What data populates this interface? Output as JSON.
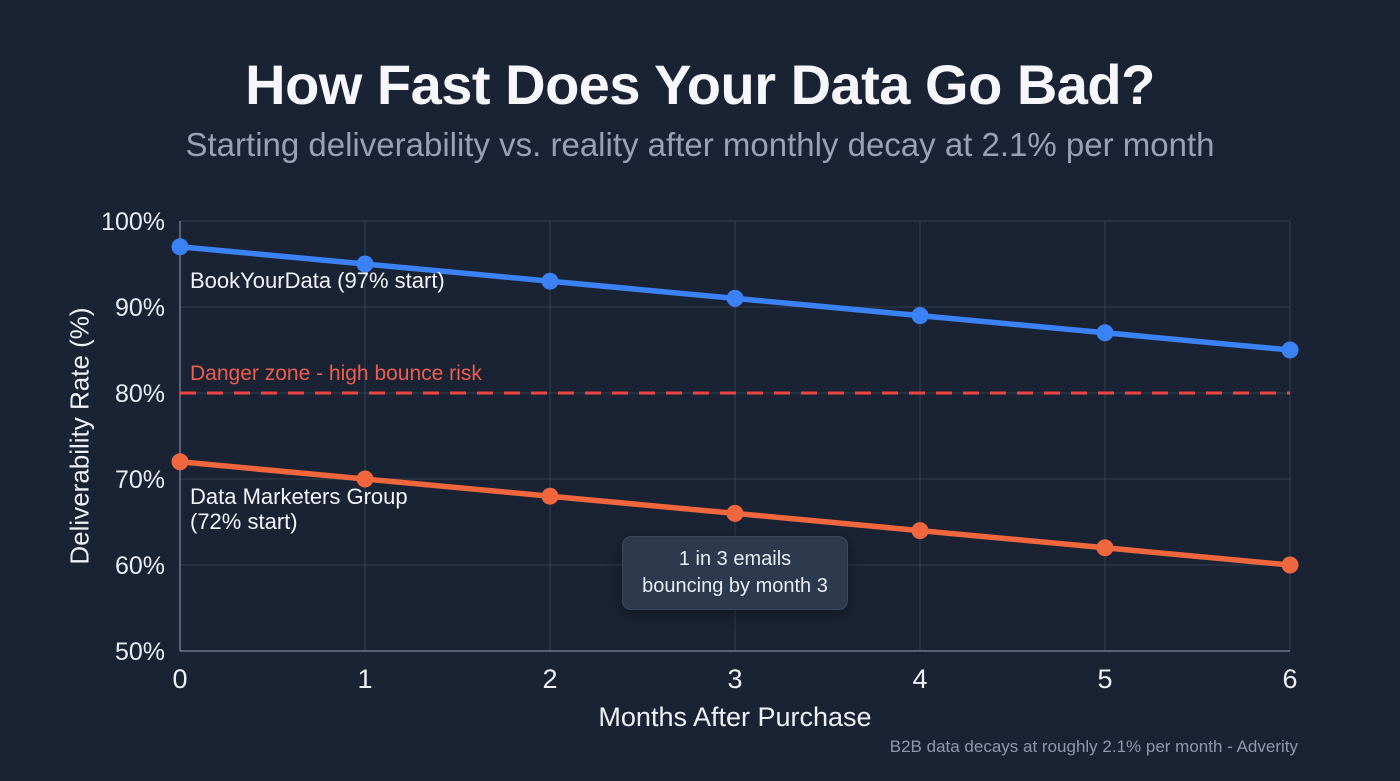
{
  "header": {
    "title": "How Fast Does Your Data Go Bad?",
    "subtitle": "Starting deliverability vs. reality after monthly decay at 2.1% per month"
  },
  "chart_data": {
    "type": "line",
    "x": [
      0,
      1,
      2,
      3,
      4,
      5,
      6
    ],
    "x_tick_labels": [
      "0",
      "1",
      "2",
      "3",
      "4",
      "5",
      "6"
    ],
    "xlabel": "Months After Purchase",
    "ylabel": "Deliverability Rate (%)",
    "ylim": [
      50,
      100
    ],
    "y_ticks": [
      100,
      90,
      80,
      70,
      60,
      50
    ],
    "y_tick_labels": [
      "100%",
      "90%",
      "80%",
      "70%",
      "60%",
      "50%"
    ],
    "grid": true,
    "legend_position": "inline-labels",
    "series": [
      {
        "name": "BookYourData",
        "label": "BookYourData (97% start)",
        "color": "#3b82f6",
        "values": [
          97,
          95,
          93,
          91,
          89,
          87,
          85
        ]
      },
      {
        "name": "Data Marketers Group",
        "label": "Data Marketers Group (72% start)",
        "color": "#f0663d",
        "values": [
          72,
          70,
          68,
          66,
          64,
          62,
          60
        ]
      }
    ],
    "danger_line": {
      "value": 80,
      "label": "Danger zone - high bounce risk",
      "color": "#ef4444",
      "label_color": "#f05c50",
      "style": "dashed"
    },
    "annotation": {
      "text": "1 in 3 emails bouncing by month 3",
      "x": 3,
      "attach_value": 66
    }
  },
  "footer": {
    "source": "B2B data decays at roughly 2.1% per month - Adverity"
  }
}
